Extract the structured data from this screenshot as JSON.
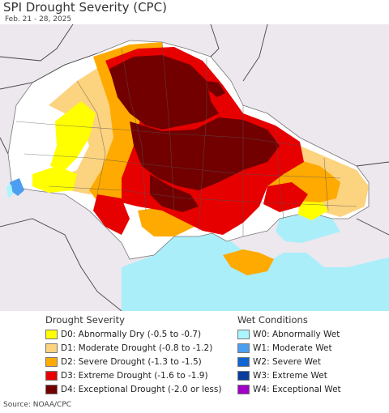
{
  "title": "SPI Drought Severity (CPC)",
  "subtitle": "Feb. 21 - 28, 2025",
  "legend": {
    "drought_heading": "Drought Severity",
    "wet_heading": "Wet Conditions",
    "drought": [
      {
        "label": "D0: Abnormally Dry (-0.5 to -0.7)",
        "color": "#ffff00"
      },
      {
        "label": "D1: Moderate Drought (-0.8 to -1.2)",
        "color": "#fcd37f"
      },
      {
        "label": "D2: Severe Drought (-1.3 to -1.5)",
        "color": "#ffaa00"
      },
      {
        "label": "D3: Extreme Drought (-1.6 to -1.9)",
        "color": "#e60000"
      },
      {
        "label": "D4: Exceptional Drought (-2.0 or less)",
        "color": "#730000"
      }
    ],
    "wet": [
      {
        "label": "W0: Abnormally Wet",
        "color": "#aaf5ff"
      },
      {
        "label": "W1: Moderate Wet",
        "color": "#4c9ef0"
      },
      {
        "label": "W2: Severe Wet",
        "color": "#0f64d2"
      },
      {
        "label": "W3: Extreme Wet",
        "color": "#0a3c9c"
      },
      {
        "label": "W4: Exceptional Wet",
        "color": "#a000c8"
      }
    ]
  },
  "map_colors": {
    "sea": "#aaeefa",
    "land_outside": "#ece8ee",
    "no_drought": "#ffffff",
    "border": "#555555"
  },
  "source": "Source: NOAA/CPC"
}
